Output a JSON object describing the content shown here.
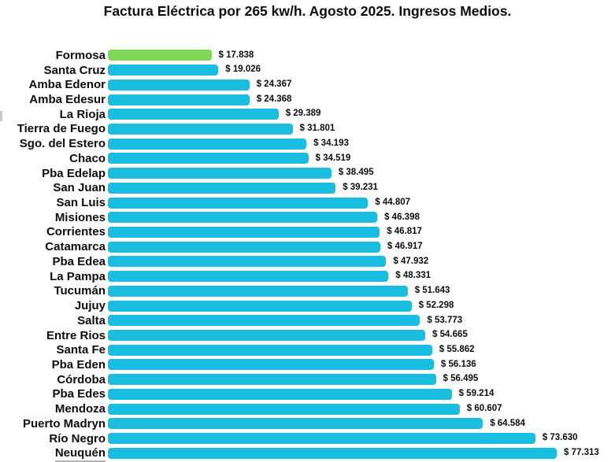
{
  "title": "Factura Eléctrica por 265 kw/h. Agosto 2025. Ingresos Medios.",
  "chart_data": {
    "type": "bar",
    "orientation": "horizontal",
    "title": "Factura Eléctrica por 265 kw/h. Agosto 2025. Ingresos Medios.",
    "xlabel": "",
    "ylabel": "",
    "grid": false,
    "legend": "none",
    "xlim": [
      0,
      77313
    ],
    "categories": [
      "Formosa",
      "Santa Cruz",
      "Amba Edenor",
      "Amba Edesur",
      "La Rioja",
      "Tierra de Fuego",
      "Sgo. del Estero",
      "Chaco",
      "Pba Edelap",
      "San Juan",
      "San Luis",
      "Misiones",
      "Corrientes",
      "Catamarca",
      "Pba Edea",
      "La Pampa",
      "Tucumán",
      "Jujuy",
      "Salta",
      "Entre Rios",
      "Santa Fe",
      "Pba Eden",
      "Córdoba",
      "Pba Edes",
      "Mendoza",
      "Puerto Madryn",
      "Río Negro",
      "Neuquén"
    ],
    "values": [
      17838,
      19026,
      24367,
      24368,
      29389,
      31801,
      34193,
      34519,
      38495,
      39231,
      44807,
      46398,
      46817,
      46917,
      47932,
      48331,
      51643,
      52298,
      53773,
      54665,
      55862,
      56136,
      56495,
      59214,
      60607,
      64584,
      73630,
      77313
    ],
    "value_labels": [
      "$ 17.838",
      "$ 19.026",
      "$ 24.367",
      "$ 24.368",
      "$ 29.389",
      "$ 31.801",
      "$ 34.193",
      "$ 34.519",
      "$ 38.495",
      "$ 39.231",
      "$ 44.807",
      "$ 46.398",
      "$ 46.817",
      "$ 46.917",
      "$ 47.932",
      "$ 48.331",
      "$ 51.643",
      "$ 52.298",
      "$ 53.773",
      "$ 54.665",
      "$ 55.862",
      "$ 56.136",
      "$ 56.495",
      "$ 59.214",
      "$ 60.607",
      "$ 64.584",
      "$ 73.630",
      "$ 77.313"
    ],
    "highlight_index": 0,
    "colors": {
      "bar": "#18BDE0",
      "highlight_bar": "#7ED957",
      "text": "#0d0d0d"
    }
  }
}
